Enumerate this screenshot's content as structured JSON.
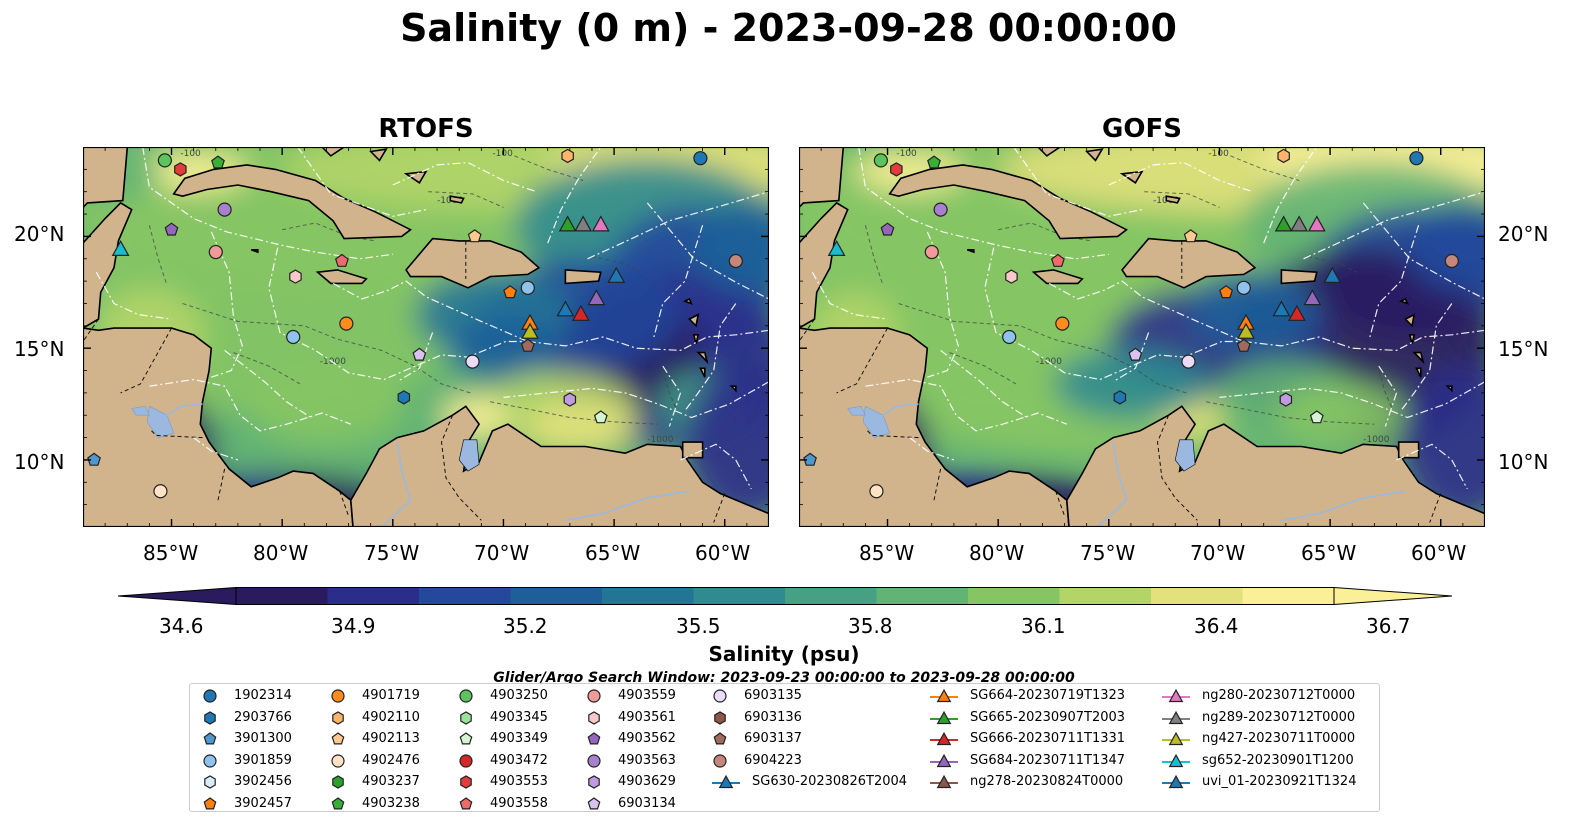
{
  "title": "Salinity (0 m) - 2023-09-28 00:00:00",
  "panels": [
    {
      "title": "RTOFS"
    },
    {
      "title": "GOFS"
    }
  ],
  "lat_labels": [
    "20°N",
    "15°N",
    "10°N"
  ],
  "lon_labels": [
    "85°W",
    "80°W",
    "75°W",
    "70°W",
    "65°W",
    "60°W"
  ],
  "map_extent": {
    "lon": [
      -89.0,
      -58.0
    ],
    "lat": [
      7.0,
      24.0
    ]
  },
  "colorbar": {
    "label": "Salinity (psu)",
    "ticks": [
      "34.6",
      "34.9",
      "35.2",
      "35.5",
      "35.8",
      "36.1",
      "36.4",
      "36.7"
    ],
    "range": [
      34.6,
      36.7
    ],
    "colors": [
      "#2a1a5e",
      "#2b2d8a",
      "#24489b",
      "#1e5f99",
      "#237596",
      "#2f8b8f",
      "#45a084",
      "#62b474",
      "#86c564",
      "#b3d567",
      "#e2e17b",
      "#fbef98"
    ]
  },
  "search_window": "Glider/Argo Search Window: 2023-09-23 00:00:00 to 2023-09-28 00:00:00",
  "legend": {
    "columns": [
      [
        {
          "label": "1902314",
          "shape": "circle",
          "color": "#1f77b4"
        },
        {
          "label": "2903766",
          "shape": "hexagon",
          "color": "#1f77b4"
        },
        {
          "label": "3901300",
          "shape": "pentagon",
          "color": "#4f97cc"
        },
        {
          "label": "3901859",
          "shape": "circle",
          "color": "#8fc3ee"
        },
        {
          "label": "3902456",
          "shape": "hexagon",
          "color": "#d8ecfb"
        },
        {
          "label": "3902457",
          "shape": "pentagon",
          "color": "#ff7f0e"
        }
      ],
      [
        {
          "label": "4901719",
          "shape": "circle",
          "color": "#ff8c1a"
        },
        {
          "label": "4902110",
          "shape": "hexagon",
          "color": "#ffb46b"
        },
        {
          "label": "4902113",
          "shape": "pentagon",
          "color": "#ffc992"
        },
        {
          "label": "4902476",
          "shape": "circle",
          "color": "#ffe3c4"
        },
        {
          "label": "4903237",
          "shape": "hexagon",
          "color": "#2ca02c"
        },
        {
          "label": "4903238",
          "shape": "pentagon",
          "color": "#38b038"
        }
      ],
      [
        {
          "label": "4903250",
          "shape": "circle",
          "color": "#5cc45c"
        },
        {
          "label": "4903345",
          "shape": "hexagon",
          "color": "#9be39b"
        },
        {
          "label": "4903349",
          "shape": "pentagon",
          "color": "#d4f5d0"
        },
        {
          "label": "4903472",
          "shape": "circle",
          "color": "#d62728"
        },
        {
          "label": "4903553",
          "shape": "hexagon",
          "color": "#e23d3d"
        },
        {
          "label": "4903558",
          "shape": "pentagon",
          "color": "#ee6b6b"
        }
      ],
      [
        {
          "label": "4903559",
          "shape": "circle",
          "color": "#f29a9a"
        },
        {
          "label": "4903561",
          "shape": "hexagon",
          "color": "#f8c9c9"
        },
        {
          "label": "4903562",
          "shape": "pentagon",
          "color": "#9467bd"
        },
        {
          "label": "4903563",
          "shape": "circle",
          "color": "#a97fd0"
        },
        {
          "label": "4903629",
          "shape": "hexagon",
          "color": "#c09be0"
        },
        {
          "label": "6903134",
          "shape": "pentagon",
          "color": "#d9c2ef"
        }
      ],
      [
        {
          "label": "6903135",
          "shape": "circle",
          "color": "#eadcf7"
        },
        {
          "label": "6903136",
          "shape": "hexagon",
          "color": "#8c564b"
        },
        {
          "label": "6903137",
          "shape": "pentagon",
          "color": "#9e6b5e"
        },
        {
          "label": "6904223",
          "shape": "circle",
          "color": "#c4877a"
        },
        {
          "label": "SG630-20230826T2004",
          "shape": "triangle-line",
          "color": "#1f77b4"
        }
      ],
      [
        {
          "label": "SG664-20230719T1323",
          "shape": "triangle-line",
          "color": "#ff7f0e"
        },
        {
          "label": "SG665-20230907T2003",
          "shape": "triangle-line",
          "color": "#2ca02c"
        },
        {
          "label": "SG666-20230711T1331",
          "shape": "triangle-line",
          "color": "#d62728"
        },
        {
          "label": "SG684-20230711T1347",
          "shape": "triangle-line",
          "color": "#9467bd"
        },
        {
          "label": "ng278-20230824T0000",
          "shape": "triangle-line",
          "color": "#8c564b"
        }
      ],
      [
        {
          "label": "ng280-20230712T0000",
          "shape": "triangle-line",
          "color": "#e377c2"
        },
        {
          "label": "ng289-20230712T0000",
          "shape": "triangle-line",
          "color": "#7f7f7f"
        },
        {
          "label": "ng427-20230711T0000",
          "shape": "triangle-line",
          "color": "#bcbd22"
        },
        {
          "label": "sg652-20230901T1200",
          "shape": "triangle-line",
          "color": "#17becf"
        },
        {
          "label": "uvi_01-20230921T1324",
          "shape": "triangle-line",
          "color": "#1f77b4"
        }
      ]
    ]
  },
  "platforms": [
    {
      "id": "1902314",
      "lon": -61.1,
      "lat": 23.5,
      "shape": "circle",
      "color": "#1f77b4"
    },
    {
      "id": "4903250",
      "lon": -85.3,
      "lat": 23.4,
      "shape": "circle",
      "color": "#5cc45c"
    },
    {
      "id": "4903553",
      "lon": -84.6,
      "lat": 23.0,
      "shape": "hexagon",
      "color": "#e23d3d"
    },
    {
      "id": "4903238",
      "lon": -82.9,
      "lat": 23.3,
      "shape": "pentagon",
      "color": "#38b038"
    },
    {
      "id": "4902110",
      "lon": -67.1,
      "lat": 23.6,
      "shape": "hexagon",
      "color": "#ffb46b"
    },
    {
      "id": "4903563",
      "lon": -82.6,
      "lat": 21.2,
      "shape": "circle",
      "color": "#a97fd0"
    },
    {
      "id": "4903562",
      "lon": -85.0,
      "lat": 20.3,
      "shape": "pentagon",
      "color": "#9467bd"
    },
    {
      "id": "4903559",
      "lon": -83.0,
      "lat": 19.3,
      "shape": "circle",
      "color": "#f29a9a"
    },
    {
      "id": "4903558",
      "lon": -77.3,
      "lat": 18.9,
      "shape": "pentagon",
      "color": "#ee6b6b"
    },
    {
      "id": "4903561",
      "lon": -79.4,
      "lat": 18.2,
      "shape": "hexagon",
      "color": "#f8c9c9"
    },
    {
      "id": "4902113",
      "lon": -71.3,
      "lat": 20.0,
      "shape": "pentagon",
      "color": "#ffc992"
    },
    {
      "id": "3901300",
      "lon": -88.5,
      "lat": 10.0,
      "shape": "pentagon",
      "color": "#4f97cc"
    },
    {
      "id": "3902457",
      "lon": -69.7,
      "lat": 17.5,
      "shape": "pentagon",
      "color": "#ff7f0e"
    },
    {
      "id": "3901859",
      "lon": -68.9,
      "lat": 17.7,
      "shape": "circle",
      "color": "#8fc3ee"
    },
    {
      "id": "4901719",
      "lon": -77.1,
      "lat": 16.1,
      "shape": "circle",
      "color": "#ff8c1a"
    },
    {
      "id": "3901859b",
      "lon": -79.5,
      "lat": 15.5,
      "shape": "circle",
      "color": "#8fc3ee"
    },
    {
      "id": "6903134",
      "lon": -73.8,
      "lat": 14.7,
      "shape": "pentagon",
      "color": "#d9c2ef"
    },
    {
      "id": "6903135",
      "lon": -71.4,
      "lat": 14.4,
      "shape": "circle",
      "color": "#eadcf7"
    },
    {
      "id": "6903137",
      "lon": -68.9,
      "lat": 15.1,
      "shape": "pentagon",
      "color": "#9e6b5e"
    },
    {
      "id": "2903766",
      "lon": -74.5,
      "lat": 12.8,
      "shape": "hexagon",
      "color": "#1f77b4"
    },
    {
      "id": "4903629",
      "lon": -67.0,
      "lat": 12.7,
      "shape": "hexagon",
      "color": "#c09be0"
    },
    {
      "id": "4903349",
      "lon": -65.6,
      "lat": 11.9,
      "shape": "pentagon",
      "color": "#d4f5d0"
    },
    {
      "id": "4902476",
      "lon": -85.5,
      "lat": 8.6,
      "shape": "circle",
      "color": "#ffe3c4"
    },
    {
      "id": "6904223",
      "lon": -59.5,
      "lat": 18.9,
      "shape": "circle",
      "color": "#c4877a"
    },
    {
      "id": "sg652-20230901T1200",
      "lon": -87.3,
      "lat": 19.4,
      "shape": "triangle",
      "color": "#17becf"
    },
    {
      "id": "SG665-20230907T2003",
      "lon": -67.1,
      "lat": 20.5,
      "shape": "triangle",
      "color": "#2ca02c"
    },
    {
      "id": "ng289-20230712T0000",
      "lon": -66.4,
      "lat": 20.5,
      "shape": "triangle",
      "color": "#7f7f7f"
    },
    {
      "id": "ng280-20230712T0000",
      "lon": -65.6,
      "lat": 20.5,
      "shape": "triangle",
      "color": "#e377c2"
    },
    {
      "id": "uvi_01-20230921T1324",
      "lon": -64.9,
      "lat": 18.2,
      "shape": "triangle",
      "color": "#1f77b4"
    },
    {
      "id": "SG630-20230826T2004",
      "lon": -67.2,
      "lat": 16.7,
      "shape": "triangle",
      "color": "#1f77b4"
    },
    {
      "id": "SG666-20230711T1331",
      "lon": -66.5,
      "lat": 16.5,
      "shape": "triangle",
      "color": "#d62728"
    },
    {
      "id": "SG684-20230711T1347",
      "lon": -65.8,
      "lat": 17.2,
      "shape": "triangle",
      "color": "#9467bd"
    },
    {
      "id": "SG664-20230719T1323",
      "lon": -68.8,
      "lat": 16.1,
      "shape": "triangle",
      "color": "#ff7f0e"
    },
    {
      "id": "ng427-20230711T0000",
      "lon": -68.8,
      "lat": 15.7,
      "shape": "triangle",
      "color": "#bcbd22"
    }
  ]
}
